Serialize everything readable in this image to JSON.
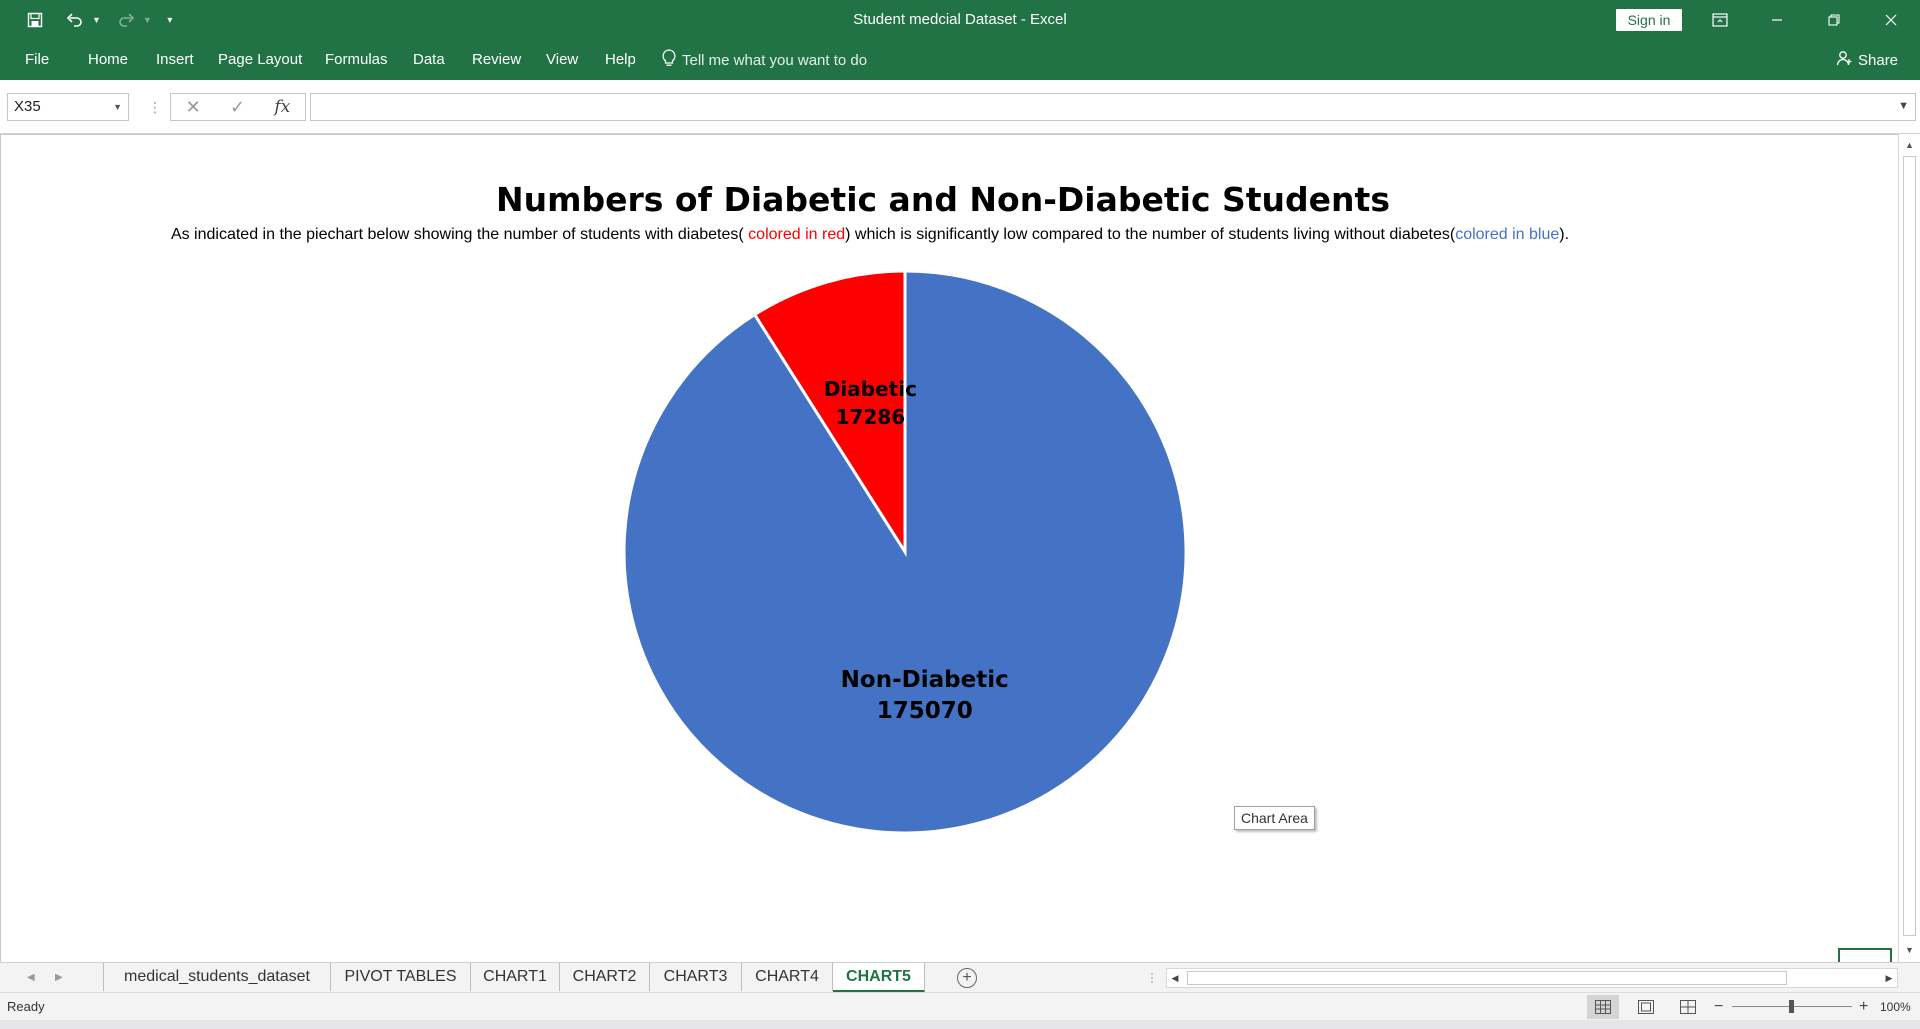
{
  "window": {
    "title": "Student medcial Dataset  -  Excel",
    "sign_in_label": "Sign in"
  },
  "ribbon": {
    "tabs": [
      "File",
      "Home",
      "Insert",
      "Page Layout",
      "Formulas",
      "Data",
      "Review",
      "View",
      "Help"
    ],
    "tell_me": "Tell me what you want to do",
    "share": "Share"
  },
  "formula_bar": {
    "name_box": "X35",
    "formula": "",
    "fx_label": "fx"
  },
  "chart_data": {
    "type": "pie",
    "title": "Numbers of Diabetic and Non-Diabetic Students",
    "subtitle_parts": [
      "As indicated in the piechart below showing the number of students with diabetes(",
      " colored in red",
      ") which is significantly low compared to the number of students living without diabetes(",
      "colored in blue",
      ")."
    ],
    "categories": [
      "Diabetic",
      "Non-Diabetic"
    ],
    "values": [
      17286,
      175070
    ],
    "colors": [
      "#ff0000",
      "#4472c4"
    ],
    "data_labels": [
      "Diabetic 17286",
      "Non-Diabetic 175070"
    ],
    "start_angle_deg": 0,
    "direction": "counterclockwise"
  },
  "chart_tooltip": "Chart Area",
  "sheet_tabs": {
    "tabs": [
      "medical_students_dataset",
      "PIVOT TABLES",
      "CHART1",
      "CHART2",
      "CHART3",
      "CHART4",
      "CHART5"
    ],
    "active": "CHART5"
  },
  "status": {
    "ready": "Ready",
    "zoom": "100%"
  },
  "colors": {
    "excel_green": "#217346"
  }
}
